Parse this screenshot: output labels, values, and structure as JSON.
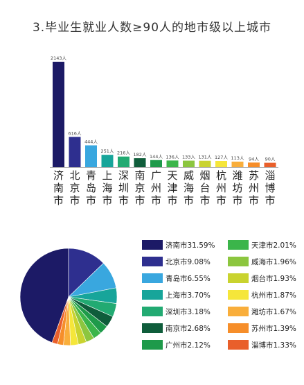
{
  "title": "3.毕业生就业人数≥90人的地市级以上城市",
  "chart_data": [
    {
      "type": "bar",
      "categories": [
        "济南市",
        "北京市",
        "青岛市",
        "上海市",
        "深圳市",
        "南京市",
        "广州市",
        "天津市",
        "威海市",
        "烟台市",
        "杭州市",
        "潍坊市",
        "苏州市",
        "淄博市"
      ],
      "values": [
        2143,
        616,
        444,
        251,
        216,
        182,
        144,
        136,
        133,
        131,
        127,
        113,
        94,
        90
      ],
      "value_labels": [
        "2143人",
        "616人",
        "444人",
        "251人",
        "216人",
        "182人",
        "144人",
        "136人",
        "133人",
        "131人",
        "127人",
        "113人",
        "94人",
        "90人"
      ],
      "colors": [
        "#1c1a66",
        "#2e2f8f",
        "#39a7df",
        "#17a59a",
        "#22aa72",
        "#0f5d3b",
        "#1e9a4a",
        "#3bb54a",
        "#8cc63f",
        "#c9d32f",
        "#f5e63a",
        "#f9ae3b",
        "#f68e2a",
        "#e95f2b"
      ],
      "ylim": [
        0,
        2143
      ]
    },
    {
      "type": "pie",
      "labels": [
        "济南市",
        "北京市",
        "青岛市",
        "上海市",
        "深圳市",
        "南京市",
        "广州市",
        "天津市",
        "威海市",
        "烟台市",
        "杭州市",
        "潍坊市",
        "苏州市",
        "淄博市"
      ],
      "values": [
        31.59,
        9.08,
        6.55,
        3.7,
        3.18,
        2.68,
        2.12,
        2.01,
        1.96,
        1.93,
        1.87,
        1.67,
        1.39,
        1.33
      ],
      "legend_labels": [
        "济南市31.59%",
        "北京市9.08%",
        "青岛市6.55%",
        "上海市3.70%",
        "深圳市3.18%",
        "南京市2.68%",
        "广州市2.12%",
        "天津市2.01%",
        "威海市1.96%",
        "烟台市1.93%",
        "杭州市1.87%",
        "潍坊市1.67%",
        "苏州市1.39%",
        "淄博市1.33%"
      ],
      "colors": [
        "#1c1a66",
        "#2e2f8f",
        "#39a7df",
        "#17a59a",
        "#22aa72",
        "#0f5d3b",
        "#1e9a4a",
        "#3bb54a",
        "#8cc63f",
        "#c9d32f",
        "#f5e63a",
        "#f9ae3b",
        "#f68e2a",
        "#e95f2b"
      ],
      "legend_placement": "right"
    }
  ]
}
